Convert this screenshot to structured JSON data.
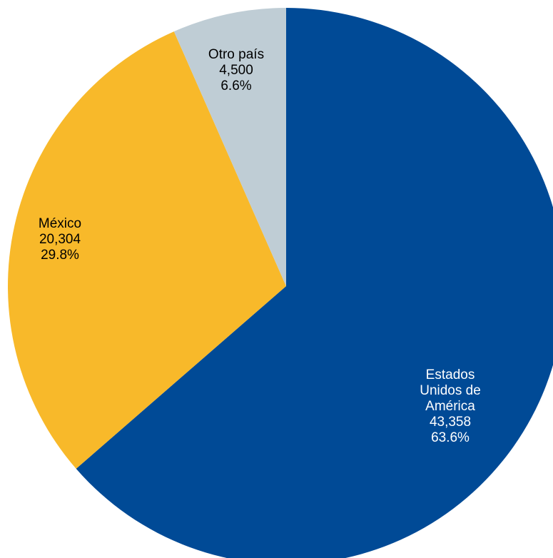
{
  "chart_data": {
    "type": "pie",
    "title": "",
    "slices": [
      {
        "name": "Estados Unidos de América",
        "label_lines": [
          "Estados",
          "Unidos de",
          "América"
        ],
        "value": 43358,
        "value_text": "43,358",
        "percent_text": "63.6%",
        "color": "#004a96",
        "text_color": "#ffffff"
      },
      {
        "name": "México",
        "label_lines": [
          "México"
        ],
        "value": 20304,
        "value_text": "20,304",
        "percent_text": "29.8%",
        "color": "#f8b92a",
        "text_color": "#000000"
      },
      {
        "name": "Otro país",
        "label_lines": [
          "Otro país"
        ],
        "value": 4500,
        "value_text": "4,500",
        "percent_text": "6.6%",
        "color": "#bfcdd5",
        "text_color": "#000000"
      }
    ]
  }
}
